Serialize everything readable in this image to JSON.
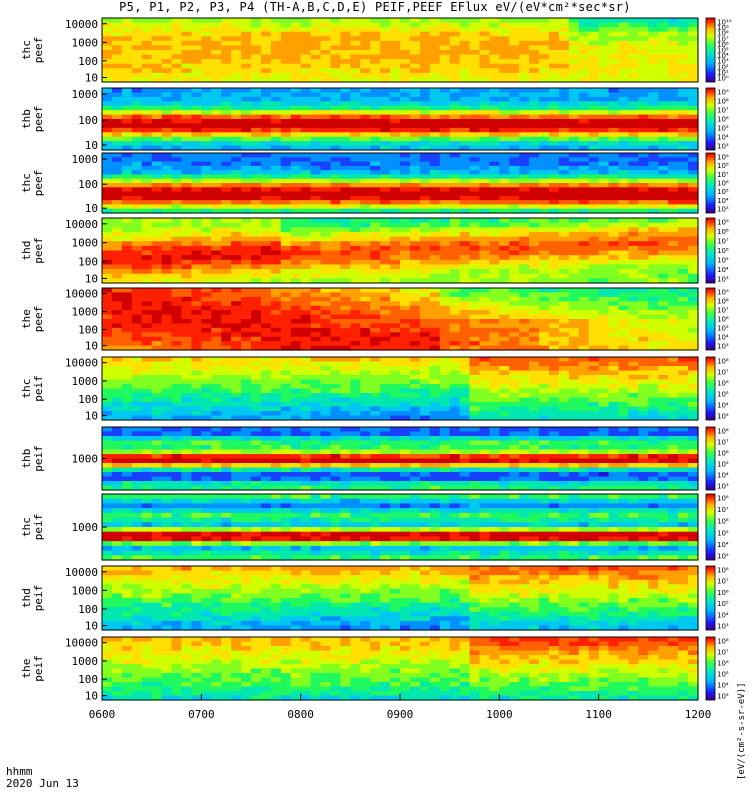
{
  "title": "P5, P1, P2, P3, P4 (TH-A,B,C,D,E) PEIF,PEEF EFlux eV/(eV*cm²*sec*sr)",
  "footer": {
    "line1": "hhmm",
    "line2": "2020 Jun 13"
  },
  "colorbar_title": "[eV/(cm²-s-sr-eV)]",
  "chart_data": {
    "type": "heatmap",
    "x_label": "hhmm",
    "date": "2020 Jun 13",
    "x_range": [
      "0600",
      "1200"
    ],
    "x_ticks": [
      "0600",
      "0700",
      "0800",
      "0900",
      "1000",
      "1100",
      "1200"
    ],
    "y_scale": "log",
    "colormap": "rainbow",
    "panels": [
      {
        "name": "thc peef",
        "y_ticks": [
          "10000",
          "1000",
          "100",
          "10"
        ],
        "cb_ticks": [
          "10¹⁰",
          "10⁹",
          "10⁸",
          "10⁷",
          "10⁶",
          "10⁵",
          "10⁴",
          "10³",
          "10²",
          "10¹",
          "10⁰"
        ]
      },
      {
        "name": "thb peef",
        "y_ticks": [
          "1000",
          "100",
          "10"
        ],
        "cb_ticks": [
          "10⁹",
          "10⁸",
          "10⁷",
          "10⁶",
          "10⁵",
          "10⁴",
          "10³"
        ]
      },
      {
        "name": "thc peef",
        "y_ticks": [
          "1000",
          "100",
          "10"
        ],
        "cb_ticks": [
          "10⁹",
          "10⁸",
          "10⁷",
          "10⁶",
          "10⁵",
          "10⁴",
          "10³"
        ]
      },
      {
        "name": "thd peef",
        "y_ticks": [
          "10000",
          "1000",
          "100",
          "10"
        ],
        "cb_ticks": [
          "10⁹",
          "10⁸",
          "10⁷",
          "10⁶",
          "10⁵",
          "10⁴",
          "10³"
        ]
      },
      {
        "name": "the peef",
        "y_ticks": [
          "10000",
          "1000",
          "100",
          "10"
        ],
        "cb_ticks": [
          "10⁹",
          "10⁸",
          "10⁷",
          "10⁶",
          "10⁵",
          "10⁴",
          "10³"
        ]
      },
      {
        "name": "thc peif",
        "y_ticks": [
          "10000",
          "1000",
          "100",
          "10"
        ],
        "cb_ticks": [
          "10⁸",
          "10⁷",
          "10⁶",
          "10⁵",
          "10⁴",
          "10³"
        ]
      },
      {
        "name": "thb peif",
        "y_ticks": [
          "1000"
        ],
        "cb_ticks": [
          "10⁸",
          "10⁷",
          "10⁶",
          "10⁵",
          "10⁴",
          "10³"
        ]
      },
      {
        "name": "thc peif",
        "y_ticks": [
          "1000"
        ],
        "cb_ticks": [
          "10⁸",
          "10⁷",
          "10⁶",
          "10⁵",
          "10⁴",
          "10³"
        ]
      },
      {
        "name": "thd peif",
        "y_ticks": [
          "10000",
          "1000",
          "100",
          "10"
        ],
        "cb_ticks": [
          "10⁸",
          "10⁷",
          "10⁶",
          "10⁵",
          "10⁴",
          "10³"
        ]
      },
      {
        "name": "the peif",
        "y_ticks": [
          "10000",
          "1000",
          "100",
          "10"
        ],
        "cb_ticks": [
          "10⁸",
          "10⁷",
          "10⁶",
          "10⁵",
          "10⁴",
          "10³"
        ]
      }
    ]
  }
}
